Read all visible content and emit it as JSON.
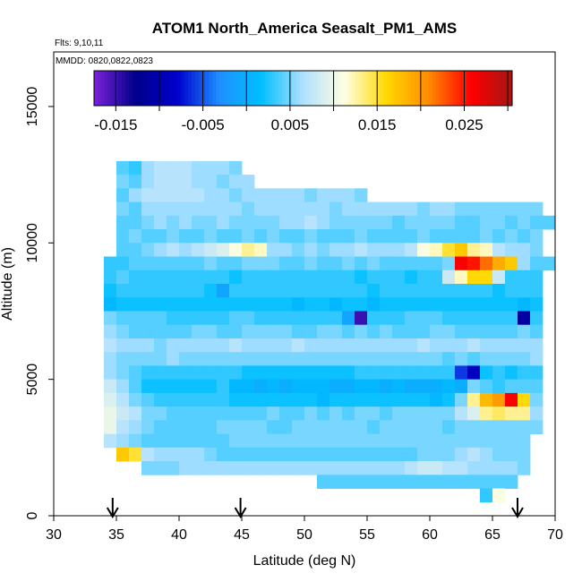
{
  "chart_data": {
    "type": "heatmap",
    "title": "ATOM1 North_America Seasalt_PM1_AMS",
    "flights_label": "Flts: 9,10,11",
    "dates_label": "MMDD: 0820,0822,0823",
    "xlabel": "Latitude (deg N)",
    "ylabel": "Altitude (m)",
    "xlim": [
      30,
      70
    ],
    "ylim": [
      0,
      17000
    ],
    "x_ticks": [
      "30",
      "35",
      "40",
      "45",
      "50",
      "55",
      "60",
      "65",
      "70"
    ],
    "y_ticks": [
      "0",
      "5000",
      "10000",
      "15000"
    ],
    "colorbar": {
      "min": -0.0175,
      "max": 0.0305,
      "ticks": [
        "-0.015",
        "-0.005",
        "0.005",
        "0.015",
        "0.025"
      ],
      "tick_values": [
        -0.015,
        -0.005,
        0.005,
        0.015,
        0.025
      ],
      "stops": [
        "#7a22d8",
        "#00008b",
        "#0000cd",
        "#1e90ff",
        "#00bfff",
        "#b0e0ff",
        "#ffffe0",
        "#ffd700",
        "#ff8c00",
        "#ff0000",
        "#a51616"
      ]
    },
    "cell_size": {
      "dlat": 1.0,
      "dalt": 500
    },
    "rows": [
      {
        "alt": 12500,
        "lat_start": 35,
        "values": [
          0.004,
          0.003,
          0.006,
          0.007,
          0.007,
          0.007,
          0.006,
          0.006,
          0.006,
          0.005
        ]
      },
      {
        "alt": 12000,
        "lat_start": 35,
        "values": [
          0.005,
          0.004,
          0.006,
          0.007,
          0.007,
          0.007,
          0.006,
          0.006,
          0.005,
          0.006,
          0.006
        ]
      },
      {
        "alt": 11500,
        "lat_start": 35,
        "values": [
          0.004,
          0.006,
          0.007,
          0.007,
          0.007,
          0.007,
          0.007,
          0.006,
          0.006,
          0.005,
          0.006,
          0.006,
          0.006,
          0.006,
          0.006,
          0.005,
          0.006,
          0.006,
          0.006,
          0.005
        ]
      },
      {
        "alt": 11000,
        "lat_start": 35,
        "values": [
          0.005,
          0.004,
          0.006,
          0.006,
          0.006,
          0.006,
          0.006,
          0.006,
          0.006,
          0.006,
          0.005,
          0.006,
          0.006,
          0.006,
          0.006,
          0.006,
          0.006,
          0.005,
          0.006,
          0.006,
          0.006,
          0.006,
          0.006,
          0.006,
          0.005,
          0.006,
          0.006,
          0.005,
          0.005,
          0.005,
          0.005,
          0.005,
          0.005,
          0.005
        ]
      },
      {
        "alt": 10500,
        "lat_start": 35,
        "values": [
          0.004,
          0.004,
          0.005,
          0.006,
          0.005,
          0.006,
          0.005,
          0.005,
          0.006,
          0.005,
          0.005,
          0.005,
          0.005,
          0.006,
          0.006,
          0.007,
          0.006,
          0.005,
          0.005,
          0.005,
          0.005,
          0.005,
          0.004,
          0.005,
          0.005,
          0.005,
          0.005,
          0.004,
          0.004,
          0.005,
          0.005,
          0.004,
          0.005,
          0.004,
          0.004
        ]
      },
      {
        "alt": 10000,
        "lat_start": 35,
        "values": [
          0.004,
          0.005,
          0.004,
          0.004,
          0.005,
          0.004,
          0.004,
          0.005,
          0.004,
          0.004,
          0.005,
          0.004,
          0.005,
          0.004,
          0.004,
          0.005,
          0.004,
          0.004,
          0.004,
          0.005,
          0.004,
          0.004,
          0.004,
          0.004,
          0.005,
          0.004,
          0.004,
          0.004,
          0.004,
          0.005,
          0.004,
          0.005,
          0.004,
          0.005
        ]
      },
      {
        "alt": 9500,
        "lat_start": 35,
        "values": [
          0.004,
          0.004,
          0.005,
          0.006,
          0.007,
          0.006,
          0.007,
          0.008,
          0.009,
          0.011,
          0.013,
          0.012,
          0.006,
          0.006,
          0.005,
          0.006,
          0.005,
          0.006,
          0.006,
          0.007,
          0.006,
          0.006,
          0.006,
          0.007,
          0.011,
          0.012,
          0.015,
          0.017,
          0.013,
          0.012,
          0.007,
          0.006,
          0.006,
          0.005
        ]
      },
      {
        "alt": 9000,
        "lat_start": 34,
        "values": [
          0.003,
          0.003,
          0.004,
          0.004,
          0.004,
          0.004,
          0.004,
          0.004,
          0.005,
          0.004,
          0.004,
          0.005,
          0.005,
          0.005,
          0.004,
          0.004,
          0.005,
          0.004,
          0.004,
          0.005,
          0.004,
          0.005,
          0.004,
          0.004,
          0.004,
          0.004,
          0.004,
          0.005,
          0.026,
          0.025,
          0.022,
          0.019,
          0.017,
          0.006,
          0.004,
          0.004
        ]
      },
      {
        "alt": 8500,
        "lat_start": 34,
        "values": [
          0.003,
          0.004,
          0.003,
          0.003,
          0.003,
          0.003,
          0.003,
          0.003,
          0.003,
          0.003,
          0.002,
          0.003,
          0.003,
          0.003,
          0.003,
          0.003,
          0.003,
          0.003,
          0.003,
          0.003,
          0.002,
          0.003,
          0.003,
          0.003,
          0.002,
          0.003,
          0.003,
          0.008,
          0.012,
          0.016,
          0.016,
          0.008,
          0.003,
          0.003,
          0.003
        ]
      },
      {
        "alt": 8000,
        "lat_start": 34,
        "values": [
          0.002,
          0.003,
          0.003,
          0.003,
          0.003,
          0.003,
          0.003,
          0.003,
          0.002,
          -0.001,
          0.003,
          0.003,
          0.003,
          0.003,
          0.003,
          0.003,
          0.003,
          0.003,
          0.003,
          0.003,
          0.003,
          0.002,
          0.003,
          0.003,
          0.003,
          0.003,
          0.003,
          0.003,
          0.003,
          0.003,
          0.003,
          0.002,
          0.003,
          0.003,
          0.003
        ]
      },
      {
        "alt": 7500,
        "lat_start": 34,
        "values": [
          0.001,
          0.002,
          0.002,
          0.002,
          0.002,
          0.002,
          0.002,
          0.002,
          0.002,
          0.002,
          0.002,
          0.002,
          0.002,
          0.002,
          0.002,
          0.001,
          0.002,
          0.002,
          0.001,
          0.002,
          0.002,
          0.001,
          0.002,
          0.002,
          0.002,
          0.002,
          0.002,
          0.002,
          0.002,
          0.002,
          0.002,
          0.002,
          0.002,
          0.001,
          0.002
        ]
      },
      {
        "alt": 7000,
        "lat_start": 34,
        "values": [
          0.005,
          0.004,
          0.004,
          0.004,
          0.004,
          0.003,
          0.003,
          0.003,
          0.003,
          0.003,
          0.004,
          0.004,
          0.003,
          0.003,
          0.003,
          0.003,
          0.003,
          0.003,
          0.003,
          -0.001,
          -0.015,
          0.003,
          0.003,
          0.003,
          0.004,
          0.004,
          0.004,
          0.003,
          0.003,
          0.003,
          0.003,
          0.003,
          0.003,
          -0.011,
          0.003
        ]
      },
      {
        "alt": 6500,
        "lat_start": 34,
        "values": [
          0.006,
          0.005,
          0.004,
          0.004,
          0.004,
          0.004,
          0.004,
          0.005,
          0.005,
          0.004,
          0.004,
          0.005,
          0.005,
          0.005,
          0.005,
          0.004,
          0.004,
          0.005,
          0.005,
          0.004,
          0.005,
          0.004,
          0.005,
          0.004,
          0.004,
          0.004,
          0.005,
          0.005,
          0.004,
          0.004,
          0.004,
          0.004,
          0.004,
          0.005,
          0.004
        ]
      },
      {
        "alt": 6000,
        "lat_start": 34,
        "values": [
          0.007,
          0.006,
          0.006,
          0.006,
          0.005,
          0.006,
          0.006,
          0.006,
          0.006,
          0.006,
          0.007,
          0.006,
          0.006,
          0.006,
          0.006,
          0.007,
          0.006,
          0.006,
          0.006,
          0.006,
          0.006,
          0.006,
          0.006,
          0.006,
          0.006,
          0.007,
          0.006,
          0.006,
          0.006,
          0.007,
          0.006,
          0.006,
          0.006,
          0.006,
          0.006
        ]
      },
      {
        "alt": 5500,
        "lat_start": 34,
        "values": [
          0.006,
          0.005,
          0.005,
          0.005,
          0.005,
          0.006,
          0.005,
          0.005,
          0.005,
          0.005,
          0.005,
          0.005,
          0.005,
          0.005,
          0.005,
          0.005,
          0.005,
          0.005,
          0.005,
          0.005,
          0.005,
          0.005,
          0.005,
          0.005,
          0.005,
          0.005,
          0.005,
          0.004,
          0.005,
          0.004,
          0.005,
          0.005,
          0.005,
          0.005,
          0.006
        ]
      },
      {
        "alt": 5000,
        "lat_start": 34,
        "values": [
          0.006,
          0.005,
          0.004,
          0.003,
          0.003,
          0.003,
          0.003,
          0.003,
          0.003,
          0.003,
          0.003,
          0.002,
          0.002,
          0.002,
          0.002,
          0.002,
          0.002,
          0.002,
          0.002,
          0.002,
          0.003,
          0.003,
          0.003,
          0.003,
          0.003,
          0.003,
          0.003,
          0.003,
          -0.006,
          -0.009,
          0.002,
          0.003,
          0.002,
          0.003,
          0.003
        ]
      },
      {
        "alt": 4500,
        "lat_start": 34,
        "values": [
          0.008,
          0.006,
          0.004,
          0.002,
          0.002,
          0.002,
          0.002,
          0.002,
          0.002,
          0.003,
          0.001,
          0.001,
          0.0,
          0.001,
          0.0,
          0.001,
          0.001,
          0.001,
          0.0,
          0.0,
          0.001,
          0.001,
          0.0,
          0.001,
          0.0,
          0.0,
          0.0,
          0.001,
          0.0,
          0.005,
          0.004,
          0.003,
          0.004,
          0.004,
          0.004
        ]
      },
      {
        "alt": 4000,
        "lat_start": 34,
        "values": [
          0.009,
          0.007,
          0.005,
          0.004,
          0.003,
          0.003,
          0.003,
          0.003,
          0.003,
          0.003,
          0.002,
          0.002,
          0.002,
          0.002,
          0.002,
          0.002,
          0.002,
          0.001,
          0.002,
          0.002,
          0.002,
          0.002,
          0.002,
          0.002,
          0.002,
          0.002,
          0.001,
          0.002,
          0.005,
          0.013,
          0.018,
          0.02,
          0.026,
          0.016,
          0.005
        ]
      },
      {
        "alt": 3500,
        "lat_start": 34,
        "values": [
          0.01,
          0.008,
          0.007,
          0.005,
          0.005,
          0.004,
          0.004,
          0.004,
          0.004,
          0.004,
          0.004,
          0.004,
          0.004,
          0.005,
          0.004,
          0.004,
          0.005,
          0.004,
          0.005,
          0.004,
          0.005,
          0.005,
          0.004,
          0.005,
          0.005,
          0.005,
          0.005,
          0.005,
          0.007,
          0.009,
          0.013,
          0.014,
          0.013,
          0.013,
          0.006
        ]
      },
      {
        "alt": 3000,
        "lat_start": 34,
        "values": [
          0.01,
          0.007,
          0.006,
          0.005,
          0.004,
          0.004,
          0.004,
          0.004,
          0.004,
          0.005,
          0.005,
          0.005,
          0.005,
          0.004,
          0.004,
          0.005,
          0.005,
          0.005,
          0.005,
          0.005,
          0.005,
          0.004,
          0.005,
          0.005,
          0.005,
          0.005,
          0.005,
          0.004,
          0.005,
          0.005,
          0.005,
          0.005,
          0.005,
          0.005,
          0.005
        ]
      },
      {
        "alt": 2500,
        "lat_start": 34,
        "values": [
          0.007,
          0.006,
          0.005,
          0.004,
          0.004,
          0.004,
          0.004,
          0.004,
          0.004,
          0.004,
          0.005,
          0.005,
          0.005,
          0.005,
          0.005,
          0.005,
          0.005,
          0.005,
          0.005,
          0.005,
          0.005,
          0.005,
          0.005,
          0.005,
          0.005,
          0.005,
          0.005,
          0.005,
          0.005,
          0.005,
          0.005,
          0.005,
          0.005,
          0.005
        ]
      },
      {
        "alt": 2000,
        "lat_start": 35,
        "values": [
          0.017,
          0.015,
          0.007,
          0.006,
          0.006,
          0.006,
          0.006,
          0.005,
          0.004,
          0.004,
          0.004,
          0.004,
          0.004,
          0.004,
          0.004,
          0.004,
          0.004,
          0.004,
          0.004,
          0.004,
          0.004,
          0.004,
          0.004,
          0.004,
          0.005,
          0.005,
          0.005,
          0.006,
          0.007,
          0.006,
          0.005,
          0.005,
          0.005
        ]
      },
      {
        "alt": 1500,
        "lat_start": 37,
        "values": [
          0.005,
          0.005,
          0.005,
          0.006,
          0.006,
          0.006,
          0.006,
          0.006,
          0.006,
          0.006,
          0.006,
          0.006,
          0.006,
          0.006,
          0.006,
          0.006,
          0.006,
          0.006,
          0.006,
          0.006,
          0.006,
          0.007,
          0.008,
          0.008,
          0.007,
          0.007,
          0.006,
          0.006,
          0.006,
          0.006,
          0.005
        ]
      },
      {
        "alt": 1000,
        "lat_start": 51,
        "values": [
          0.004,
          0.004,
          0.004,
          0.004,
          0.004,
          0.004,
          0.004,
          0.004,
          0.004,
          0.004,
          0.004,
          0.004,
          0.004,
          0.004,
          0.004,
          0.004
        ]
      },
      {
        "alt": 500,
        "lat_start": 64,
        "values": [
          0.003,
          0.011
        ]
      }
    ],
    "flight_markers_lat": [
      34.7,
      44.9,
      67.0
    ],
    "grid": false,
    "legend": "colorbar top"
  }
}
